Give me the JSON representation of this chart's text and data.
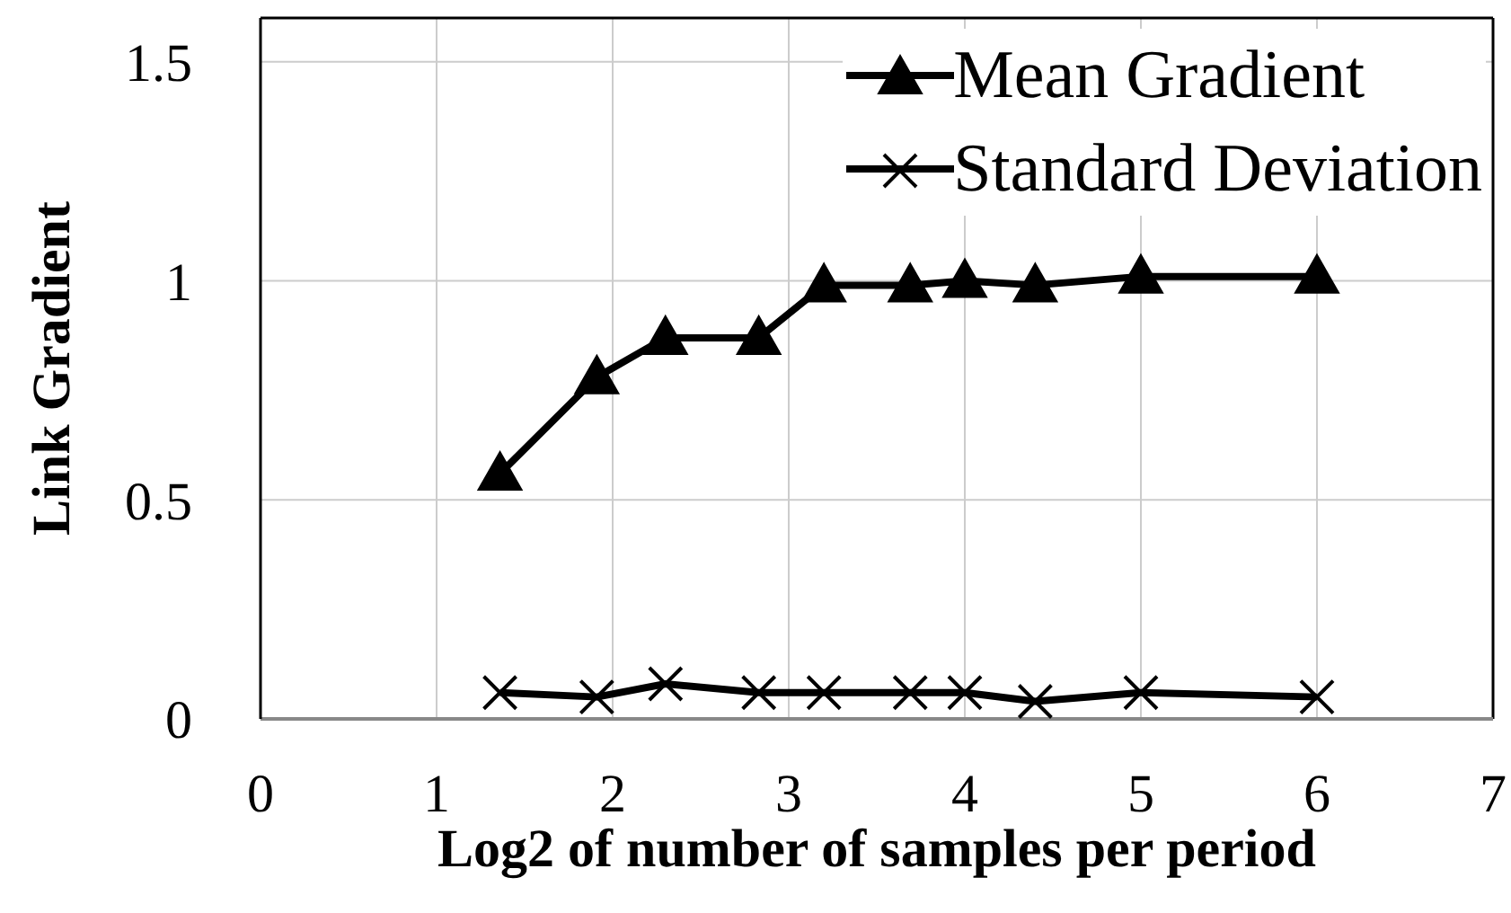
{
  "chart_data": {
    "type": "line",
    "xlabel": "Log2 of number of samples per period",
    "ylabel": "Link Gradient",
    "x": [
      1.36,
      1.91,
      2.3,
      2.83,
      3.2,
      3.69,
      4.0,
      4.4,
      5.0,
      6.0
    ],
    "series": [
      {
        "name": "Mean Gradient",
        "color": "#000000",
        "marker": "triangle",
        "values": [
          0.56,
          0.78,
          0.87,
          0.87,
          0.99,
          0.99,
          1.0,
          0.99,
          1.01,
          1.01
        ]
      },
      {
        "name": "Standard Deviation",
        "color": "#000000",
        "marker": "cross",
        "values": [
          0.06,
          0.05,
          0.08,
          0.06,
          0.06,
          0.06,
          0.06,
          0.04,
          0.06,
          0.05
        ]
      }
    ],
    "xlim": [
      0,
      7
    ],
    "xticks": [
      0,
      1,
      2,
      3,
      4,
      5,
      6,
      7
    ],
    "ylim": [
      0,
      1.6
    ],
    "yticks": [
      0,
      0.5,
      1,
      1.5
    ],
    "grid": true,
    "legend": "top right",
    "line_style": "solid"
  }
}
